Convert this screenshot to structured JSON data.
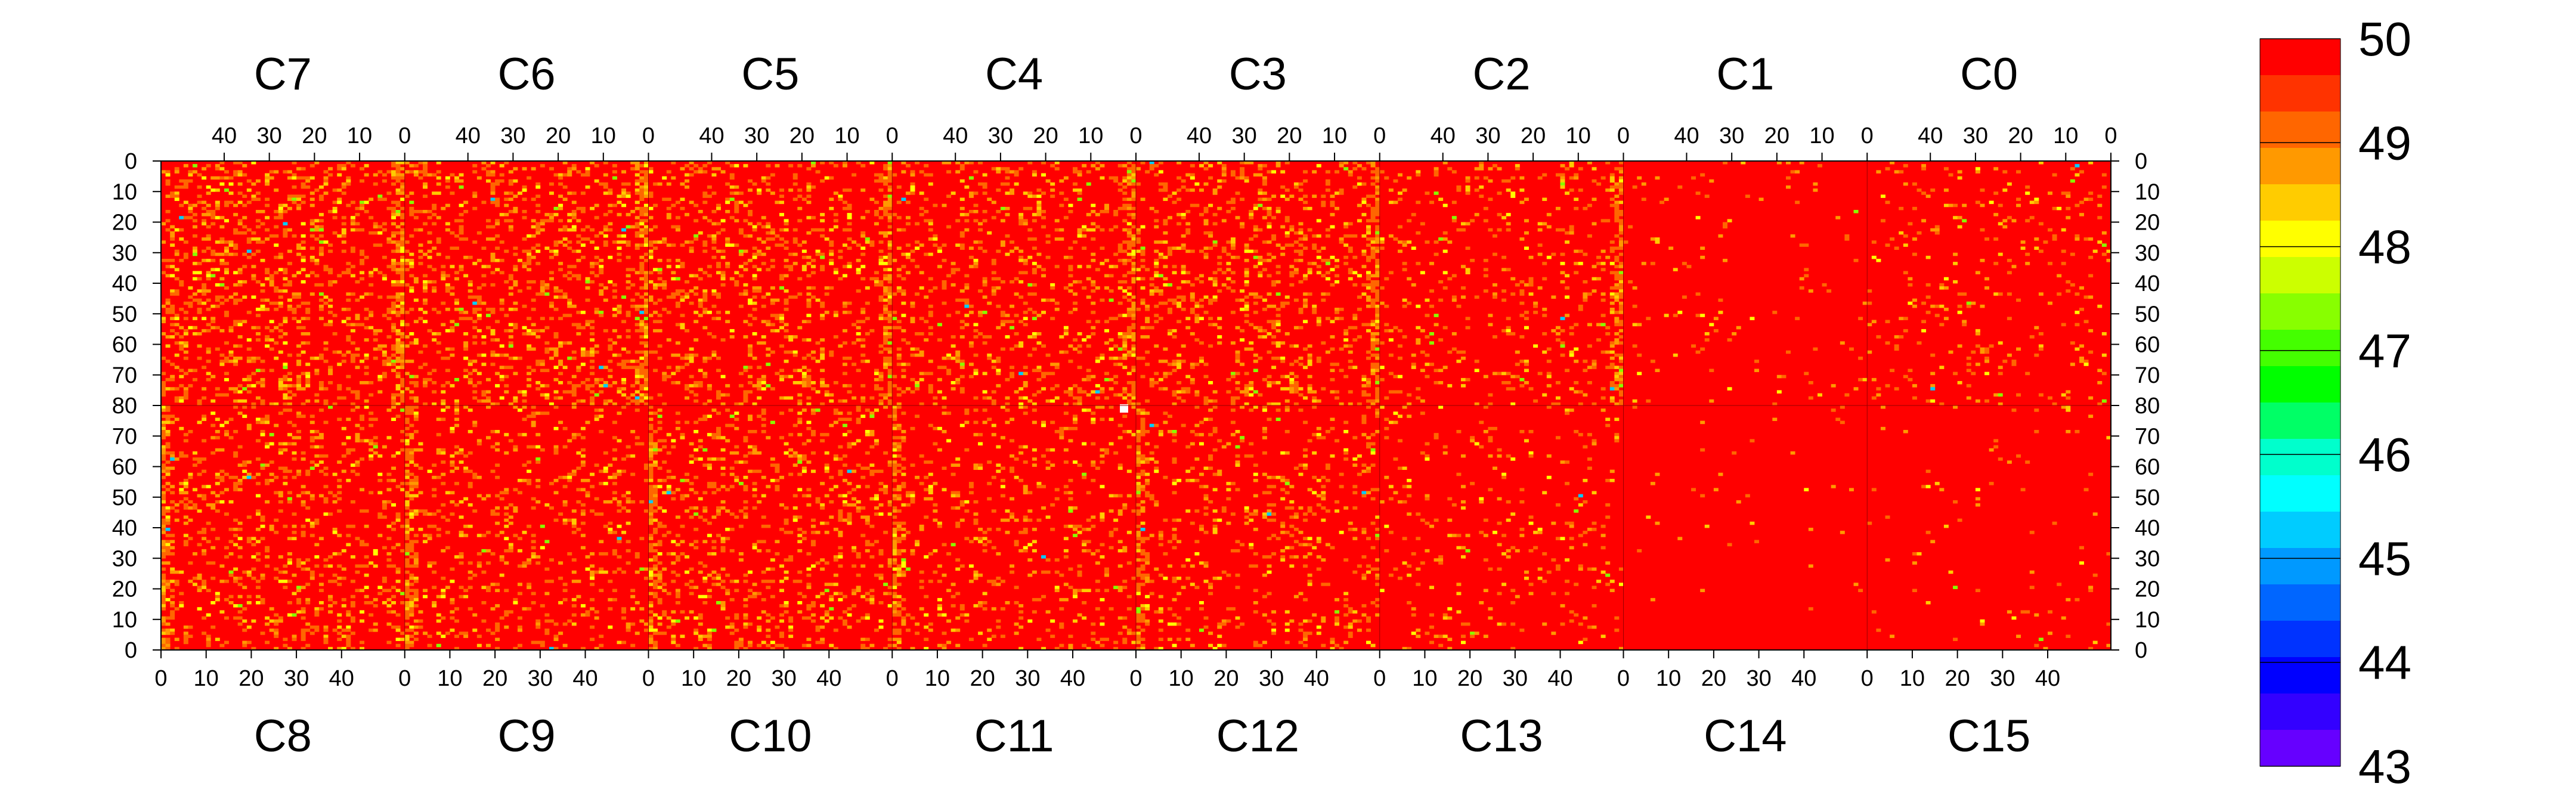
{
  "chart_data": {
    "type": "heatmap",
    "title": "",
    "xlabel": "",
    "ylabel": "",
    "grid": false,
    "top_chips": [
      "C7",
      "C6",
      "C5",
      "C4",
      "C3",
      "C2",
      "C1",
      "C0"
    ],
    "bottom_chips": [
      "C8",
      "C9",
      "C10",
      "C11",
      "C12",
      "C13",
      "C14",
      "C15"
    ],
    "columns_per_chip": 54,
    "rows_per_half": 80,
    "top_x_ticks": [
      "40",
      "30",
      "20",
      "10",
      "0"
    ],
    "bottom_x_ticks": [
      "0",
      "10",
      "20",
      "30",
      "40"
    ],
    "y_ticks_top_half": [
      "0",
      "10",
      "20",
      "30",
      "40",
      "50",
      "60",
      "70"
    ],
    "y_tick_center": "80",
    "y_ticks_bottom_half": [
      "70",
      "60",
      "50",
      "40",
      "30",
      "20",
      "10",
      "0"
    ],
    "zlim": [
      43,
      50
    ],
    "colorbar_ticks": [
      "50",
      "49",
      "48",
      "47",
      "46",
      "45",
      "44",
      "43"
    ],
    "colorbar_colors": [
      "#ff0000",
      "#ff3300",
      "#ff6600",
      "#ff9900",
      "#ffcc00",
      "#ffff00",
      "#ccff00",
      "#88ff00",
      "#44ff00",
      "#00ff00",
      "#00ff66",
      "#00ffcc",
      "#00ffff",
      "#00ccff",
      "#0099ff",
      "#0066ff",
      "#0033ff",
      "#0000ff",
      "#3300ff",
      "#6600ff"
    ],
    "background_value": 50,
    "background_color": "#ff0000",
    "off_value_colors": [
      "#ff6600",
      "#ff9900",
      "#ffcc00",
      "#ffff00",
      "#88ff00",
      "#00ccff"
    ],
    "chip_noise_level": [
      0.22,
      0.2,
      0.18,
      0.16,
      0.18,
      0.1,
      0.03,
      0.06,
      0.16,
      0.14,
      0.16,
      0.12,
      0.12,
      0.06,
      0.01,
      0.02
    ],
    "edge_stripe_intensity": 0.55,
    "white_cell_value": "dead pixel"
  }
}
